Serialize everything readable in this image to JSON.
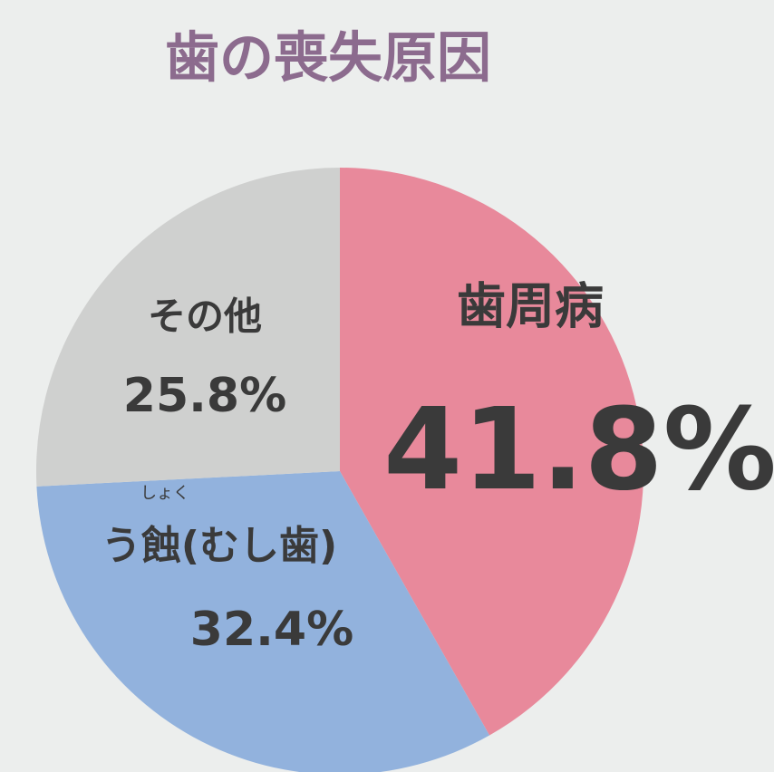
{
  "chart_data": {
    "type": "pie",
    "title": "歯の喪失原因",
    "categories": [
      "歯周病",
      "う蝕(むし歯)",
      "その他"
    ],
    "values": [
      41.8,
      32.4,
      25.8
    ],
    "value_labels": [
      "41.8%",
      "32.4%",
      "25.8%"
    ],
    "colors": [
      "#e8899b",
      "#92b2dd",
      "#cfd0cf"
    ],
    "annotations": [
      "しょく"
    ]
  }
}
